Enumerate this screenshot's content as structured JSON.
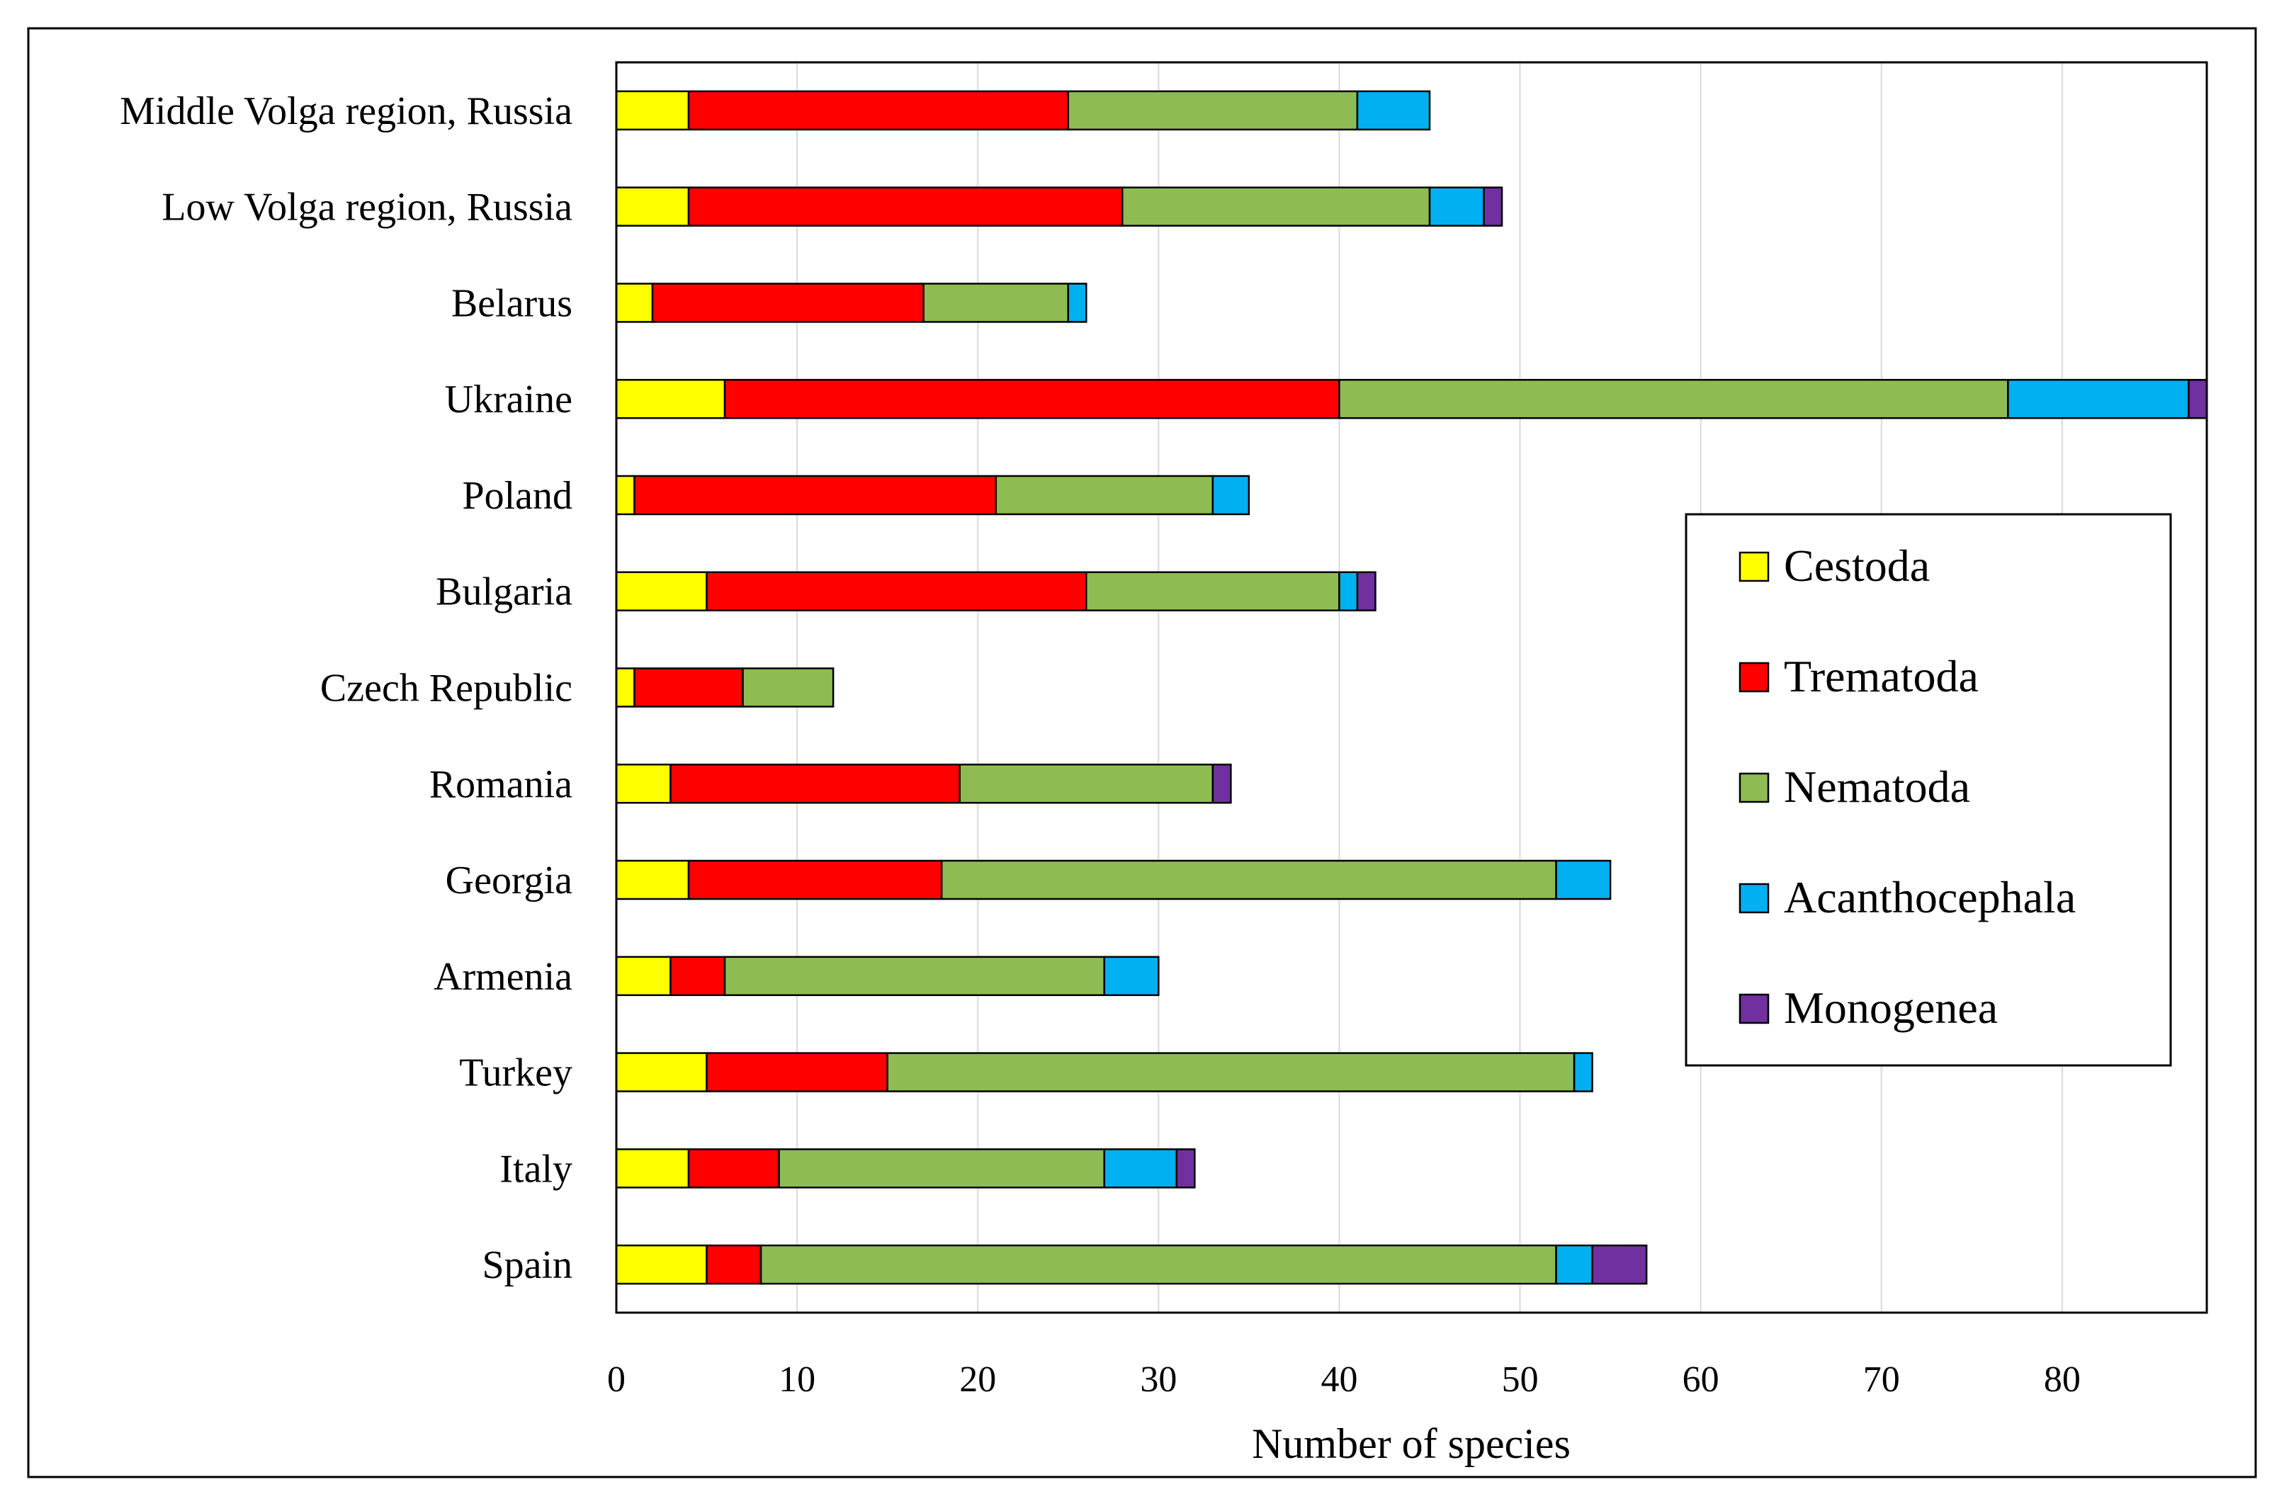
{
  "chart_data": {
    "type": "bar",
    "orientation": "horizontal",
    "stacked": true,
    "title": "",
    "xlabel": "Number of species",
    "ylabel": "",
    "xlim": [
      0,
      88
    ],
    "xticks": [
      0,
      10,
      20,
      30,
      40,
      50,
      60,
      70,
      80
    ],
    "grid": "vertical",
    "legend_position": "right",
    "categories": [
      "Middle Volga region, Russia",
      "Low Volga region, Russia",
      "Belarus",
      "Ukraine",
      "Poland",
      "Bulgaria",
      "Czech Republic",
      "Romania",
      "Georgia",
      "Armenia",
      "Turkey",
      "Italy",
      "Spain"
    ],
    "series": [
      {
        "name": "Cestoda",
        "color": "#ffff00",
        "values": [
          4,
          4,
          2,
          6,
          1,
          5,
          1,
          3,
          4,
          3,
          5,
          4,
          5
        ]
      },
      {
        "name": "Trematoda",
        "color": "#ff0000",
        "values": [
          21,
          24,
          15,
          34,
          20,
          21,
          6,
          16,
          14,
          3,
          10,
          5,
          3
        ]
      },
      {
        "name": "Nematoda",
        "color": "#8fbc52",
        "values": [
          16,
          17,
          8,
          37,
          12,
          14,
          5,
          14,
          34,
          21,
          38,
          18,
          44
        ]
      },
      {
        "name": "Acanthocephala",
        "color": "#00b0f0",
        "values": [
          4,
          3,
          1,
          10,
          2,
          1,
          0,
          0,
          3,
          3,
          1,
          4,
          2
        ]
      },
      {
        "name": "Monogenea",
        "color": "#7030a0",
        "values": [
          0,
          1,
          0,
          1,
          0,
          1,
          0,
          1,
          0,
          0,
          0,
          1,
          3
        ]
      }
    ]
  }
}
